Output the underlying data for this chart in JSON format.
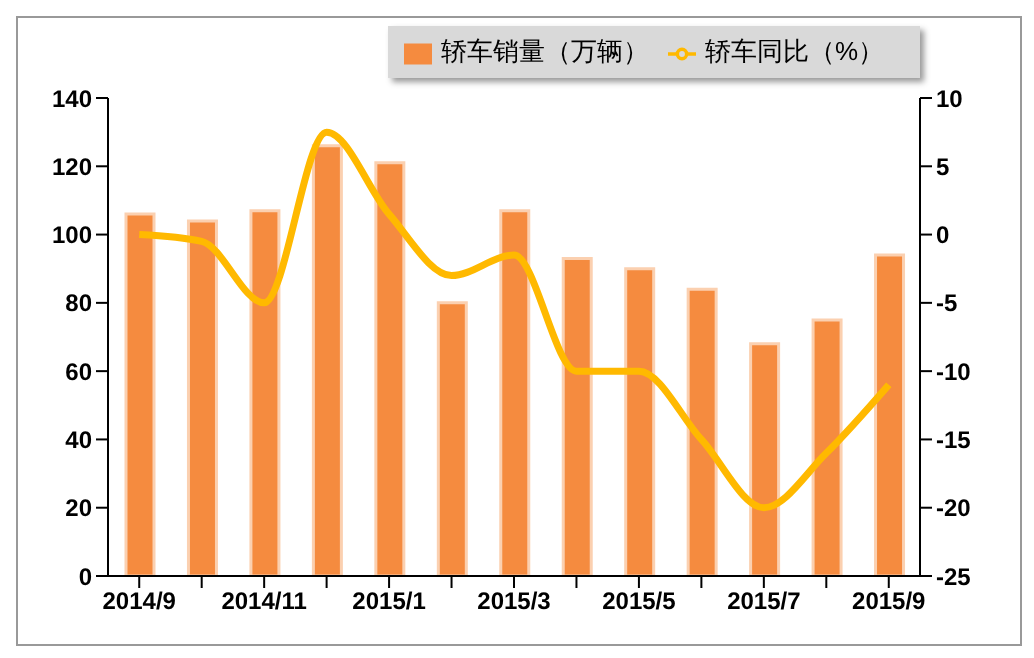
{
  "chart_data": {
    "type": "bar",
    "categories": [
      "2014/9",
      null,
      "2014/11",
      null,
      "2015/1",
      null,
      "2015/3",
      null,
      "2015/5",
      null,
      "2015/7",
      null,
      "2015/9"
    ],
    "series": [
      {
        "name": "轿车销量（万辆）",
        "color": "#f58b3f",
        "values": [
          106,
          104,
          107,
          126,
          121,
          80,
          107,
          93,
          90,
          84,
          68,
          75,
          94
        ]
      },
      {
        "name": "轿车同比（%）",
        "type": "line",
        "axis": "y2",
        "color": "#ffb900",
        "values": [
          0,
          -0.5,
          -5,
          7.5,
          1.5,
          -3,
          -1.5,
          -10,
          -10,
          -15,
          -20,
          -16,
          -11
        ]
      }
    ],
    "ylim": [
      0,
      140
    ],
    "yticks": [
      0,
      20,
      40,
      60,
      80,
      100,
      120,
      140
    ],
    "y2lim": [
      -25,
      10
    ],
    "y2ticks": [
      -25,
      -20,
      -15,
      -10,
      -5,
      0,
      5,
      10
    ],
    "grid": false,
    "legend": "top right",
    "marker": "none"
  }
}
